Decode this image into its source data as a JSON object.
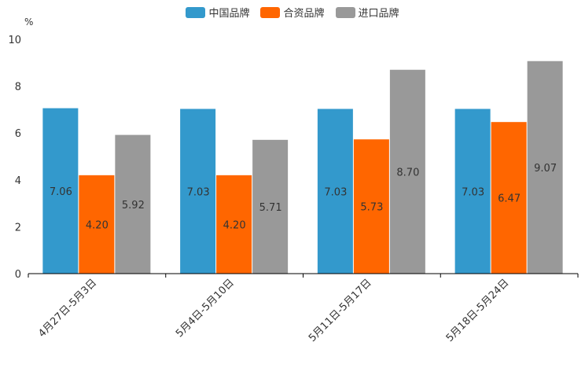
{
  "chart_data": {
    "type": "bar",
    "unit": "%",
    "categories": [
      "4月27日-5月3日",
      "5月4日-5月10日",
      "5月11日-5月17日",
      "5月18日-5月24日"
    ],
    "series": [
      {
        "name": "中国品牌",
        "color": "#3399cc",
        "values": [
          7.06,
          7.03,
          7.03,
          7.03
        ]
      },
      {
        "name": "合资品牌",
        "color": "#ff6600",
        "values": [
          4.2,
          4.2,
          5.73,
          6.47
        ]
      },
      {
        "name": "进口品牌",
        "color": "#999999",
        "values": [
          5.92,
          5.71,
          8.7,
          9.07
        ]
      }
    ],
    "ylim": [
      0,
      10
    ],
    "yticks": [
      0,
      2,
      4,
      6,
      8,
      10
    ],
    "legend_position": "top-center"
  }
}
